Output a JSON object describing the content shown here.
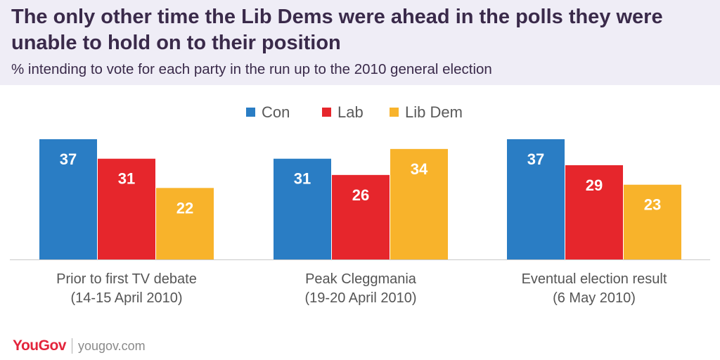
{
  "header": {
    "title": "The only other time the Lib Dems were ahead in the polls they were unable to hold on to their position",
    "subtitle": "% intending to vote for each party in the run up to the 2010 general election"
  },
  "footer": {
    "logo": "YouGov",
    "site": "yougov.com"
  },
  "colors": {
    "con": "#2a7dc4",
    "lab": "#e6262c",
    "libdem": "#f8b32b"
  },
  "chart_data": {
    "type": "bar",
    "categories": [
      [
        "Prior to first TV debate",
        "(14-15 April 2010)"
      ],
      [
        "Peak Cleggmania",
        "(19-20 April 2010)"
      ],
      [
        "Eventual election result",
        "(6 May 2010)"
      ]
    ],
    "series": [
      {
        "name": "Con",
        "color": "#2a7dc4",
        "values": [
          37,
          31,
          37
        ]
      },
      {
        "name": "Lab",
        "color": "#e6262c",
        "values": [
          31,
          26,
          29
        ]
      },
      {
        "name": "Lib Dem",
        "color": "#f8b32b",
        "values": [
          22,
          34,
          23
        ]
      }
    ],
    "ylim": [
      0,
      37
    ],
    "legend": "top-center",
    "grid": false
  }
}
